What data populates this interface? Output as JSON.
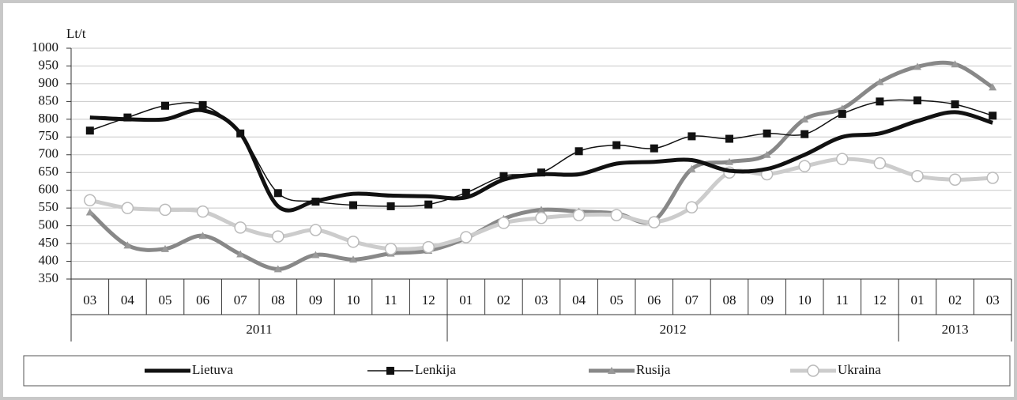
{
  "chart_data": {
    "type": "line",
    "y_label": "Lt/t",
    "groups": [
      {
        "label": "2011",
        "categories": [
          "03",
          "04",
          "05",
          "06",
          "07",
          "08",
          "09",
          "10",
          "11",
          "12"
        ]
      },
      {
        "label": "2012",
        "categories": [
          "01",
          "02",
          "03",
          "04",
          "05",
          "06",
          "07",
          "08",
          "09",
          "10",
          "11",
          "12"
        ]
      },
      {
        "label": "2013",
        "categories": [
          "01",
          "02",
          "03"
        ]
      }
    ],
    "ylim": [
      350,
      1000
    ],
    "yticks": [
      350,
      400,
      450,
      500,
      550,
      600,
      650,
      700,
      750,
      800,
      850,
      900,
      950,
      1000
    ],
    "grid": true,
    "series": [
      {
        "name": "Lietuva",
        "color": "#111111",
        "width": 5,
        "marker": "none",
        "values": [
          805,
          800,
          800,
          825,
          760,
          555,
          570,
          590,
          585,
          583,
          580,
          630,
          645,
          645,
          675,
          680,
          685,
          655,
          660,
          700,
          750,
          760,
          795,
          820,
          790
        ]
      },
      {
        "name": "Lenkija",
        "color": "#111111",
        "width": 1.5,
        "marker": "square",
        "values": [
          768,
          805,
          838,
          840,
          760,
          592,
          568,
          558,
          555,
          560,
          593,
          640,
          650,
          710,
          727,
          718,
          752,
          745,
          760,
          758,
          815,
          850,
          853,
          842,
          810
        ]
      },
      {
        "name": "Rusija",
        "color": "#888888",
        "width": 5,
        "marker": "triangle",
        "values": [
          538,
          445,
          435,
          472,
          420,
          378,
          418,
          405,
          422,
          430,
          465,
          520,
          545,
          540,
          535,
          515,
          660,
          680,
          700,
          800,
          830,
          905,
          948,
          955,
          890
        ]
      },
      {
        "name": "Ukraina",
        "color": "#cccccc",
        "width": 5,
        "marker": "circle",
        "values": [
          572,
          550,
          545,
          540,
          495,
          470,
          488,
          455,
          435,
          440,
          468,
          508,
          522,
          530,
          530,
          510,
          552,
          650,
          645,
          668,
          688,
          676,
          640,
          630,
          635
        ]
      }
    ]
  }
}
